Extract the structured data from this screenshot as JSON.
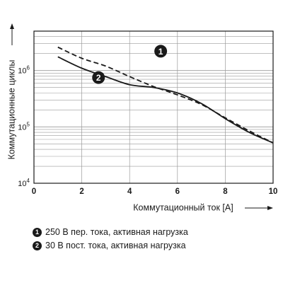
{
  "chart_data": {
    "type": "line",
    "title": "",
    "xlabel": "Коммутационный ток [A]",
    "ylabel": "Коммутационные циклы",
    "x_ticks": [
      "0",
      "2",
      "4",
      "6",
      "8",
      "10"
    ],
    "y_ticks": [
      {
        "base": "10",
        "exp": "4",
        "value": 10000
      },
      {
        "base": "10",
        "exp": "5",
        "value": 100000
      },
      {
        "base": "10",
        "exp": "6",
        "value": 1000000
      }
    ],
    "xlim": [
      0,
      10
    ],
    "ylim": [
      10000,
      5000000
    ],
    "y_scale": "log",
    "grid": true,
    "series": [
      {
        "name": "1",
        "marker_label": "1",
        "line_style": "dashed",
        "color": "#1a1a1a",
        "points": [
          [
            1,
            2600000
          ],
          [
            2,
            1650000
          ],
          [
            3,
            1200000
          ],
          [
            4,
            780000
          ],
          [
            5,
            520000
          ],
          [
            6,
            370000
          ],
          [
            7,
            250000
          ],
          [
            8,
            145000
          ],
          [
            9,
            85000
          ],
          [
            10,
            52000
          ]
        ]
      },
      {
        "name": "2",
        "marker_label": "2",
        "line_style": "solid",
        "color": "#1a1a1a",
        "points": [
          [
            1,
            1750000
          ],
          [
            2,
            1100000
          ],
          [
            3,
            780000
          ],
          [
            4,
            560000
          ],
          [
            5,
            500000
          ],
          [
            6,
            400000
          ],
          [
            7,
            260000
          ],
          [
            8,
            140000
          ],
          [
            9,
            80000
          ],
          [
            10,
            52000
          ]
        ]
      }
    ]
  },
  "legend": [
    {
      "num": "1",
      "text": "250 В пер. тока, активная нагрузка"
    },
    {
      "num": "2",
      "text": "30 В пост. тока, активная нагрузка"
    }
  ]
}
